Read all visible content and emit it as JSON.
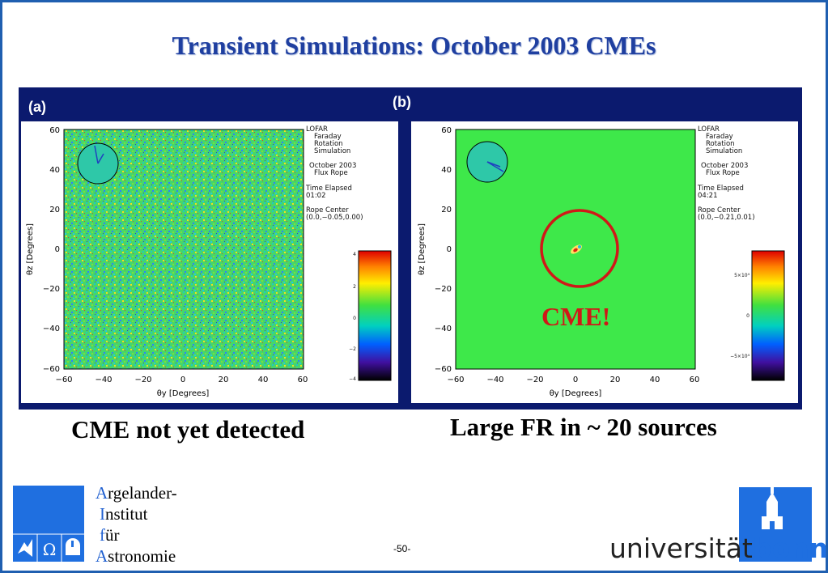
{
  "slide": {
    "title": "Transient Simulations: October 2003 CMEs",
    "page_number": "-50-",
    "caption_left": "CME not yet detected",
    "caption_right": "Large FR in ~ 20 sources",
    "cme_label": "CME!"
  },
  "panels": {
    "a": {
      "label": "(a)",
      "info": [
        "LOFAR",
        "Faraday",
        "Rotation",
        "Simulation",
        "October 2003",
        "Flux Rope",
        "Time Elapsed",
        "01:02",
        "Rope Center",
        "(0.0,−0.05,0.00)"
      ],
      "colorbar_ticks": [
        "4",
        "2",
        "0",
        "−2",
        "−4"
      ],
      "y_ticks": [
        "60",
        "40",
        "20",
        "0",
        "−20",
        "−40",
        "−60"
      ],
      "x_ticks": [
        "−60",
        "−40",
        "−20",
        "0",
        "20",
        "40",
        "60"
      ],
      "xlabel": "θy [Degrees]",
      "ylabel": "θz [Degrees]"
    },
    "b": {
      "label": "(b)",
      "info": [
        "LOFAR",
        "Faraday",
        "Rotation",
        "Simulation",
        "October 2003",
        "Flux Rope",
        "Time Elapsed",
        "04:21",
        "Rope Center",
        "(0.0,−0.21,0.01)"
      ],
      "colorbar_ticks": [
        "5×10⁴",
        "0",
        "−5×10⁴"
      ],
      "y_ticks": [
        "60",
        "40",
        "20",
        "0",
        "−20",
        "−40",
        "−60"
      ],
      "x_ticks": [
        "−60",
        "−40",
        "−20",
        "0",
        "20",
        "40",
        "60"
      ],
      "xlabel": "θy [Degrees]",
      "ylabel": "θz [Degrees]"
    }
  },
  "logos": {
    "aifa_lines": [
      {
        "cap": "A",
        "rest": "rgelander-"
      },
      {
        "cap": "I",
        "rest": "nstitut"
      },
      {
        "cap": "f",
        "rest": "ür"
      },
      {
        "cap": "A",
        "rest": "stronomie"
      }
    ],
    "bonn_prefix": "universität",
    "bonn_suffix": "bonn"
  },
  "colors": {
    "accent": "#1f5fb0",
    "panel_bg": "#0b1a6e",
    "cme_red": "#d01818",
    "field_green": "#3ee84a"
  }
}
